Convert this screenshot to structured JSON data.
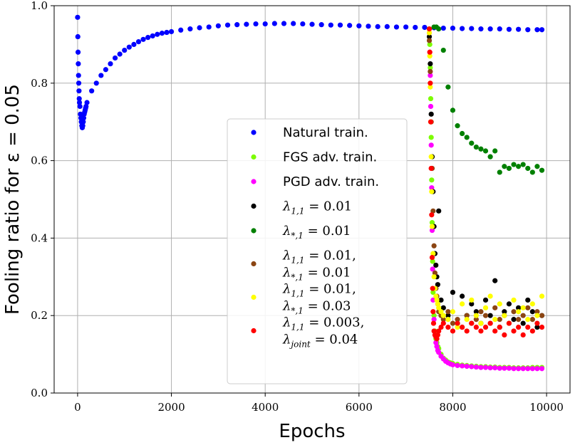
{
  "chart_data": {
    "type": "scatter",
    "xlabel": "Epochs",
    "ylabel": "Fooling ratio for ε = 0.05",
    "xlim": [
      -500,
      10500
    ],
    "ylim": [
      0,
      1.0
    ],
    "xticks": [
      0,
      2000,
      4000,
      6000,
      8000,
      10000
    ],
    "yticks": [
      0.0,
      0.2,
      0.4,
      0.6,
      0.8,
      1.0
    ],
    "xtick_labels": [
      "0",
      "2000",
      "4000",
      "6000",
      "8000",
      "10000"
    ],
    "ytick_labels": [
      "0.0",
      "0.2",
      "0.4",
      "0.6",
      "0.8",
      "1.0"
    ],
    "grid": true,
    "legend_position": "center-left",
    "series": [
      {
        "name": "Natural train.",
        "label_lines": [
          {
            "text": "Natural train.",
            "math": false
          }
        ],
        "color": "#0000ff",
        "x": [
          0,
          5,
          10,
          15,
          20,
          25,
          30,
          35,
          40,
          50,
          60,
          70,
          80,
          90,
          100,
          110,
          120,
          130,
          140,
          150,
          160,
          170,
          180,
          200,
          300,
          400,
          500,
          600,
          700,
          800,
          900,
          1000,
          1100,
          1200,
          1300,
          1400,
          1500,
          1600,
          1700,
          1800,
          1900,
          2000,
          2200,
          2400,
          2600,
          2800,
          3000,
          3200,
          3400,
          3600,
          3800,
          4000,
          4200,
          4400,
          4600,
          4800,
          5000,
          5200,
          5400,
          5600,
          5800,
          6000,
          6200,
          6400,
          6600,
          6800,
          7000,
          7200,
          7400,
          7600,
          7800,
          8000,
          8200,
          8400,
          8600,
          8800,
          9000,
          9200,
          9400,
          9600,
          9800,
          9900
        ],
        "y": [
          0.97,
          0.92,
          0.88,
          0.85,
          0.82,
          0.8,
          0.78,
          0.76,
          0.75,
          0.74,
          0.72,
          0.71,
          0.7,
          0.69,
          0.685,
          0.69,
          0.7,
          0.71,
          0.72,
          0.725,
          0.73,
          0.735,
          0.74,
          0.75,
          0.78,
          0.8,
          0.82,
          0.835,
          0.85,
          0.865,
          0.875,
          0.885,
          0.893,
          0.9,
          0.907,
          0.913,
          0.918,
          0.922,
          0.926,
          0.929,
          0.931,
          0.933,
          0.937,
          0.94,
          0.943,
          0.945,
          0.948,
          0.95,
          0.951,
          0.952,
          0.953,
          0.953,
          0.954,
          0.954,
          0.954,
          0.953,
          0.952,
          0.951,
          0.95,
          0.95,
          0.949,
          0.948,
          0.947,
          0.946,
          0.946,
          0.945,
          0.945,
          0.944,
          0.944,
          0.943,
          0.942,
          0.942,
          0.941,
          0.941,
          0.94,
          0.94,
          0.94,
          0.939,
          0.939,
          0.938,
          0.938,
          0.938
        ]
      },
      {
        "name": "FGS adv. train.",
        "label_lines": [
          {
            "text": "FGS adv. train.",
            "math": false
          }
        ],
        "color": "#7cfc00",
        "x": [
          7500,
          7510,
          7520,
          7530,
          7540,
          7550,
          7560,
          7570,
          7580,
          7600,
          7620,
          7640,
          7660,
          7680,
          7700,
          7750,
          7800,
          7850,
          7900,
          7950,
          8000,
          8100,
          8200,
          8300,
          8400,
          8500,
          8600,
          8700,
          8800,
          8900,
          9000,
          9100,
          9200,
          9300,
          9400,
          9500,
          9600,
          9700,
          9800,
          9900
        ],
        "y": [
          0.94,
          0.9,
          0.84,
          0.76,
          0.66,
          0.55,
          0.44,
          0.34,
          0.26,
          0.2,
          0.16,
          0.14,
          0.13,
          0.12,
          0.115,
          0.1,
          0.09,
          0.085,
          0.08,
          0.078,
          0.076,
          0.074,
          0.072,
          0.071,
          0.07,
          0.069,
          0.068,
          0.068,
          0.067,
          0.067,
          0.066,
          0.066,
          0.066,
          0.065,
          0.065,
          0.065,
          0.065,
          0.066,
          0.066,
          0.066
        ]
      },
      {
        "name": "PGD adv. train.",
        "label_lines": [
          {
            "text": "PGD adv. train.",
            "math": false
          }
        ],
        "color": "#ff00ff",
        "x": [
          7500,
          7510,
          7520,
          7530,
          7540,
          7550,
          7560,
          7570,
          7580,
          7600,
          7620,
          7640,
          7660,
          7680,
          7700,
          7750,
          7800,
          7850,
          7900,
          7950,
          8000,
          8100,
          8200,
          8300,
          8400,
          8500,
          8600,
          8700,
          8800,
          8900,
          9000,
          9100,
          9200,
          9300,
          9400,
          9500,
          9600,
          9700,
          9800,
          9900
        ],
        "y": [
          0.93,
          0.88,
          0.82,
          0.74,
          0.64,
          0.53,
          0.42,
          0.32,
          0.24,
          0.19,
          0.15,
          0.13,
          0.12,
          0.11,
          0.105,
          0.095,
          0.088,
          0.082,
          0.078,
          0.075,
          0.073,
          0.071,
          0.07,
          0.069,
          0.068,
          0.067,
          0.066,
          0.066,
          0.065,
          0.065,
          0.064,
          0.064,
          0.064,
          0.063,
          0.063,
          0.063,
          0.063,
          0.063,
          0.063,
          0.063
        ]
      },
      {
        "name": "λ1,1 = 0.01",
        "label_lines": [
          {
            "text": "λ",
            "sub": "1,1",
            "rest": " = 0.01",
            "math": true
          }
        ],
        "color": "#000000",
        "x": [
          7500,
          7520,
          7540,
          7560,
          7580,
          7600,
          7620,
          7640,
          7660,
          7680,
          7700,
          7750,
          7800,
          7900,
          8000,
          8100,
          8200,
          8300,
          8400,
          8500,
          8600,
          8700,
          8800,
          8900,
          9000,
          9100,
          9200,
          9300,
          9400,
          9500,
          9600,
          9700,
          9800,
          9900
        ],
        "y": [
          0.92,
          0.85,
          0.72,
          0.61,
          0.52,
          0.43,
          0.36,
          0.33,
          0.3,
          0.28,
          0.47,
          0.24,
          0.22,
          0.2,
          0.26,
          0.18,
          0.25,
          0.2,
          0.23,
          0.21,
          0.18,
          0.24,
          0.2,
          0.29,
          0.17,
          0.21,
          0.23,
          0.19,
          0.22,
          0.18,
          0.24,
          0.21,
          0.17,
          0.2
        ]
      },
      {
        "name": "λ*,1 = 0.01",
        "label_lines": [
          {
            "text": "λ",
            "sub": "*,1",
            "rest": " = 0.01",
            "math": true
          }
        ],
        "color": "#008000",
        "x": [
          7600,
          7650,
          7700,
          7800,
          7900,
          8000,
          8100,
          8200,
          8300,
          8400,
          8500,
          8600,
          8700,
          8800,
          8900,
          9000,
          9100,
          9200,
          9300,
          9400,
          9500,
          9600,
          9700,
          9800,
          9900
        ],
        "y": [
          0.945,
          0.945,
          0.94,
          0.885,
          0.79,
          0.73,
          0.69,
          0.67,
          0.66,
          0.645,
          0.635,
          0.63,
          0.625,
          0.61,
          0.625,
          0.57,
          0.585,
          0.58,
          0.59,
          0.585,
          0.59,
          0.58,
          0.57,
          0.585,
          0.575
        ]
      },
      {
        "name": "λ1,1 = 0.01, λ*,1 = 0.01",
        "label_lines": [
          {
            "text": "λ",
            "sub": "1,1",
            "rest": " = 0.01,",
            "math": true
          },
          {
            "text": "λ",
            "sub": "*,1",
            "rest": " = 0.01",
            "math": true
          }
        ],
        "color": "#8b4513",
        "x": [
          7500,
          7520,
          7540,
          7560,
          7580,
          7600,
          7620,
          7640,
          7660,
          7680,
          7700,
          7750,
          7800,
          7900,
          8000,
          8100,
          8200,
          8300,
          8400,
          8500,
          8600,
          8700,
          8800,
          8900,
          9000,
          9100,
          9200,
          9300,
          9400,
          9500,
          9600,
          9700,
          9800,
          9900
        ],
        "y": [
          0.91,
          0.83,
          0.7,
          0.58,
          0.47,
          0.38,
          0.31,
          0.27,
          0.25,
          0.23,
          0.21,
          0.2,
          0.19,
          0.21,
          0.18,
          0.19,
          0.17,
          0.2,
          0.18,
          0.19,
          0.21,
          0.2,
          0.18,
          0.22,
          0.19,
          0.2,
          0.18,
          0.21,
          0.19,
          0.2,
          0.22,
          0.19,
          0.21,
          0.2
        ]
      },
      {
        "name": "λ1,1 = 0.01, λ*,1 = 0.03",
        "label_lines": [
          {
            "text": "λ",
            "sub": "1,1",
            "rest": " = 0.01,",
            "math": true
          },
          {
            "text": "λ",
            "sub": "*,1",
            "rest": " = 0.03",
            "math": true
          }
        ],
        "color": "#ffff00",
        "x": [
          7500,
          7510,
          7520,
          7530,
          7540,
          7550,
          7560,
          7580,
          7600,
          7620,
          7640,
          7660,
          7680,
          7700,
          7750,
          7800,
          7900,
          8000,
          8100,
          8200,
          8300,
          8400,
          8500,
          8600,
          8700,
          8800,
          8900,
          9000,
          9100,
          9200,
          9300,
          9400,
          9500,
          9600,
          9700,
          9800,
          9900
        ],
        "y": [
          0.93,
          0.87,
          0.79,
          0.7,
          0.61,
          0.52,
          0.43,
          0.36,
          0.3,
          0.27,
          0.25,
          0.24,
          0.23,
          0.22,
          0.21,
          0.2,
          0.19,
          0.21,
          0.17,
          0.23,
          0.19,
          0.24,
          0.2,
          0.18,
          0.22,
          0.25,
          0.19,
          0.23,
          0.2,
          0.18,
          0.24,
          0.21,
          0.22,
          0.19,
          0.23,
          0.2,
          0.25
        ]
      },
      {
        "name": "λ1,1 = 0.003, λjoint = 0.04",
        "label_lines": [
          {
            "text": "λ",
            "sub": "1,1",
            "rest": " = 0.003,",
            "math": true
          },
          {
            "text": "λ",
            "sub": "joint",
            "rest": " = 0.04",
            "math": true
          }
        ],
        "color": "#ff0000",
        "x": [
          7500,
          7510,
          7520,
          7530,
          7540,
          7550,
          7560,
          7570,
          7580,
          7590,
          7600,
          7620,
          7640,
          7660,
          7680,
          7700,
          7750,
          7800,
          7900,
          8000,
          8100,
          8200,
          8300,
          8400,
          8500,
          8600,
          8700,
          8800,
          8900,
          9000,
          9100,
          9200,
          9300,
          9400,
          9500,
          9600,
          9700,
          9800,
          9900
        ],
        "y": [
          0.94,
          0.88,
          0.8,
          0.7,
          0.58,
          0.46,
          0.35,
          0.27,
          0.21,
          0.18,
          0.16,
          0.15,
          0.145,
          0.14,
          0.15,
          0.16,
          0.17,
          0.18,
          0.17,
          0.16,
          0.18,
          0.17,
          0.16,
          0.18,
          0.17,
          0.16,
          0.17,
          0.18,
          0.16,
          0.17,
          0.15,
          0.18,
          0.16,
          0.17,
          0.15,
          0.17,
          0.16,
          0.18,
          0.17
        ]
      }
    ]
  }
}
